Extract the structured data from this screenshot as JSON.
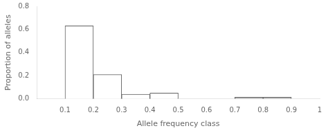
{
  "chart_data": {
    "type": "histogram",
    "bins": [
      0.0,
      0.1,
      0.2,
      0.3,
      0.4,
      0.5,
      0.6,
      0.7,
      0.8,
      0.9,
      1.0
    ],
    "values": [
      0.0,
      0.63,
      0.21,
      0.04,
      0.05,
      0.0,
      0.0,
      0.015,
      0.015,
      0.0
    ],
    "colors": [
      "#ffffff",
      "#ffffff",
      "#ffffff",
      "#ffffff",
      "#ffffff",
      "#ffffff",
      "#ffffff",
      "#c0c0c0",
      "#c0c0c0",
      "#ffffff"
    ],
    "xlabel": "Allele frequency class",
    "ylabel": "Proportion of alleles",
    "xlim": [
      0.0,
      1.0
    ],
    "ylim": [
      0.0,
      0.8
    ],
    "xticks": [
      0.1,
      0.2,
      0.3,
      0.4,
      0.5,
      0.6,
      0.7,
      0.8,
      0.9,
      1.0
    ],
    "yticks": [
      {
        "value": 0.0,
        "label": "0.0"
      },
      0.2,
      0.4,
      0.6,
      0.8
    ],
    "grid": false
  }
}
